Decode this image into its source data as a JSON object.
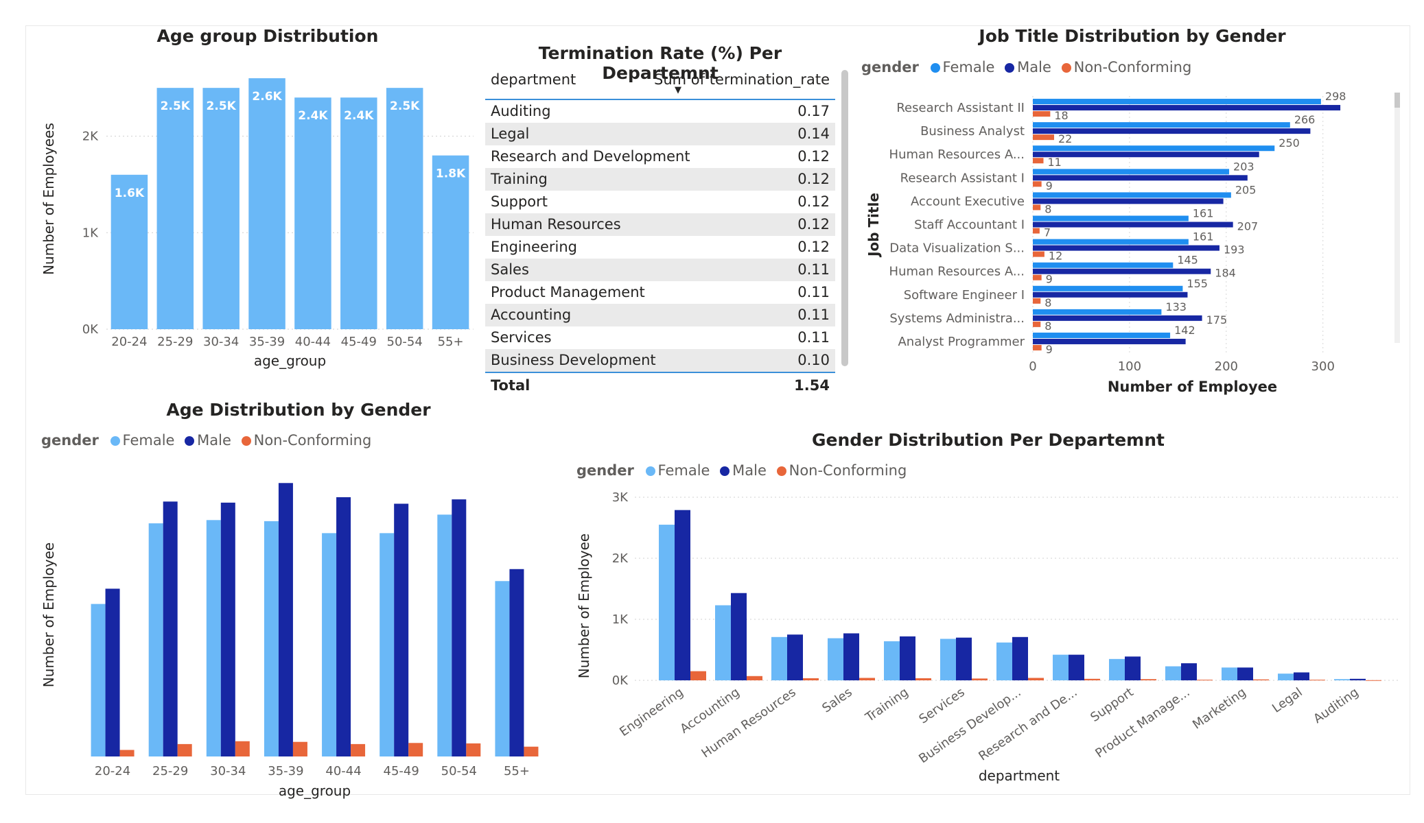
{
  "colors": {
    "female": "#6ab8f7",
    "male": "#1727a3",
    "nonconforming": "#e8663a",
    "bar_single": "#6ab8f7",
    "female_job": "#1f8ef0"
  },
  "age_chart": {
    "title": "Age group Distribution",
    "chart_data": {
      "type": "bar",
      "categories": [
        "20-24",
        "25-29",
        "30-34",
        "35-39",
        "40-44",
        "45-49",
        "50-54",
        "55+"
      ],
      "values": [
        1600,
        2500,
        2500,
        2600,
        2400,
        2400,
        2500,
        1800
      ],
      "data_labels": [
        "1.6K",
        "2.5K",
        "2.5K",
        "2.6K",
        "2.4K",
        "2.4K",
        "2.5K",
        "1.8K"
      ],
      "xlabel": "age_group",
      "ylabel": "Number of Employees",
      "ylim": [
        0,
        2700
      ],
      "yticks": [
        "0K",
        "1K",
        "2K"
      ]
    }
  },
  "termination_table": {
    "title": "Termination Rate (%) Per Departemnt",
    "col_department": "department",
    "col_value": "Sum of termination_rate",
    "sort_glyph": "▼",
    "rows": [
      {
        "dept": "Auditing",
        "rate": "0.17"
      },
      {
        "dept": "Legal",
        "rate": "0.14"
      },
      {
        "dept": "Research and Development",
        "rate": "0.12"
      },
      {
        "dept": "Training",
        "rate": "0.12"
      },
      {
        "dept": "Support",
        "rate": "0.12"
      },
      {
        "dept": "Human Resources",
        "rate": "0.12"
      },
      {
        "dept": "Engineering",
        "rate": "0.12"
      },
      {
        "dept": "Sales",
        "rate": "0.11"
      },
      {
        "dept": "Product Management",
        "rate": "0.11"
      },
      {
        "dept": "Accounting",
        "rate": "0.11"
      },
      {
        "dept": "Services",
        "rate": "0.11"
      },
      {
        "dept": "Business Development",
        "rate": "0.10"
      }
    ],
    "total_label": "Total",
    "total_value": "1.54"
  },
  "job_chart": {
    "title": "Job Title Distribution by Gender",
    "legend_title": "gender",
    "legend": [
      "Female",
      "Male",
      "Non-Conforming"
    ],
    "chart_data": {
      "type": "bar",
      "orientation": "horizontal",
      "categories": [
        "Research Assistant II",
        "Business Analyst",
        "Human Resources A...",
        "Research Assistant I",
        "Account Executive",
        "Staff Accountant I",
        "Data Visualization S...",
        "Human Resources A...",
        "Software Engineer I",
        "Systems Administra...",
        "Analyst Programmer"
      ],
      "series": [
        {
          "name": "Female",
          "values": [
            298,
            266,
            250,
            203,
            205,
            161,
            161,
            145,
            155,
            133,
            142
          ]
        },
        {
          "name": "Male",
          "values": [
            318,
            287,
            234,
            222,
            197,
            207,
            193,
            184,
            160,
            175,
            158
          ]
        },
        {
          "name": "Non-Conforming",
          "values": [
            18,
            22,
            11,
            9,
            8,
            7,
            12,
            9,
            8,
            8,
            9
          ]
        }
      ],
      "labels": {
        "Female": [
          "298",
          "266",
          "250",
          "203",
          "205",
          "161",
          "161",
          "145",
          "155",
          "133",
          "142"
        ],
        "Male": [
          "",
          "",
          "",
          "",
          "",
          "207",
          "193",
          "184",
          "",
          "175",
          ""
        ],
        "Non-Conforming": [
          "18",
          "22",
          "11",
          "9",
          "8",
          "7",
          "12",
          "9",
          "8",
          "8",
          "9"
        ]
      },
      "xlabel": "Number of Employee",
      "ylabel": "Job Title",
      "xlim": [
        0,
        330
      ],
      "xticks": [
        "0",
        "100",
        "200",
        "300"
      ]
    }
  },
  "age_gender_chart": {
    "title": "Age Distribution by Gender",
    "legend_title": "gender",
    "legend": [
      "Female",
      "Male",
      "Non-Conforming"
    ],
    "chart_data": {
      "type": "bar",
      "categories": [
        "20-24",
        "25-29",
        "30-34",
        "35-39",
        "40-44",
        "45-49",
        "50-54",
        "55+"
      ],
      "series": [
        {
          "name": "Female",
          "values": [
            700,
            1070,
            1085,
            1080,
            1025,
            1025,
            1110,
            805
          ]
        },
        {
          "name": "Male",
          "values": [
            770,
            1170,
            1165,
            1255,
            1190,
            1160,
            1180,
            860
          ]
        },
        {
          "name": "Non-Conforming",
          "values": [
            30,
            57,
            70,
            67,
            57,
            62,
            60,
            45
          ]
        }
      ],
      "xlabel": "age_group",
      "ylabel": "Number of Employee",
      "ylim": [
        0,
        1300
      ]
    }
  },
  "dept_chart": {
    "title": "Gender Distribution Per Departemnt",
    "legend_title": "gender",
    "legend": [
      "Female",
      "Male",
      "Non-Conforming"
    ],
    "chart_data": {
      "type": "bar",
      "categories": [
        "Engineering",
        "Accounting",
        "Human Resources",
        "Sales",
        "Training",
        "Services",
        "Business Develop...",
        "Research and De...",
        "Support",
        "Product Manage...",
        "Marketing",
        "Legal",
        "Auditing"
      ],
      "series": [
        {
          "name": "Female",
          "values": [
            2550,
            1230,
            710,
            690,
            640,
            680,
            620,
            420,
            350,
            230,
            210,
            110,
            20
          ]
        },
        {
          "name": "Male",
          "values": [
            2790,
            1430,
            750,
            770,
            720,
            700,
            710,
            420,
            390,
            280,
            210,
            130,
            25
          ]
        },
        {
          "name": "Non-Conforming",
          "values": [
            150,
            70,
            35,
            40,
            35,
            30,
            40,
            25,
            20,
            10,
            15,
            10,
            3
          ]
        }
      ],
      "xlabel": "department",
      "ylabel": "Number of Employee",
      "ylim": [
        0,
        3000
      ],
      "yticks": [
        "0K",
        "1K",
        "2K",
        "3K"
      ]
    }
  }
}
